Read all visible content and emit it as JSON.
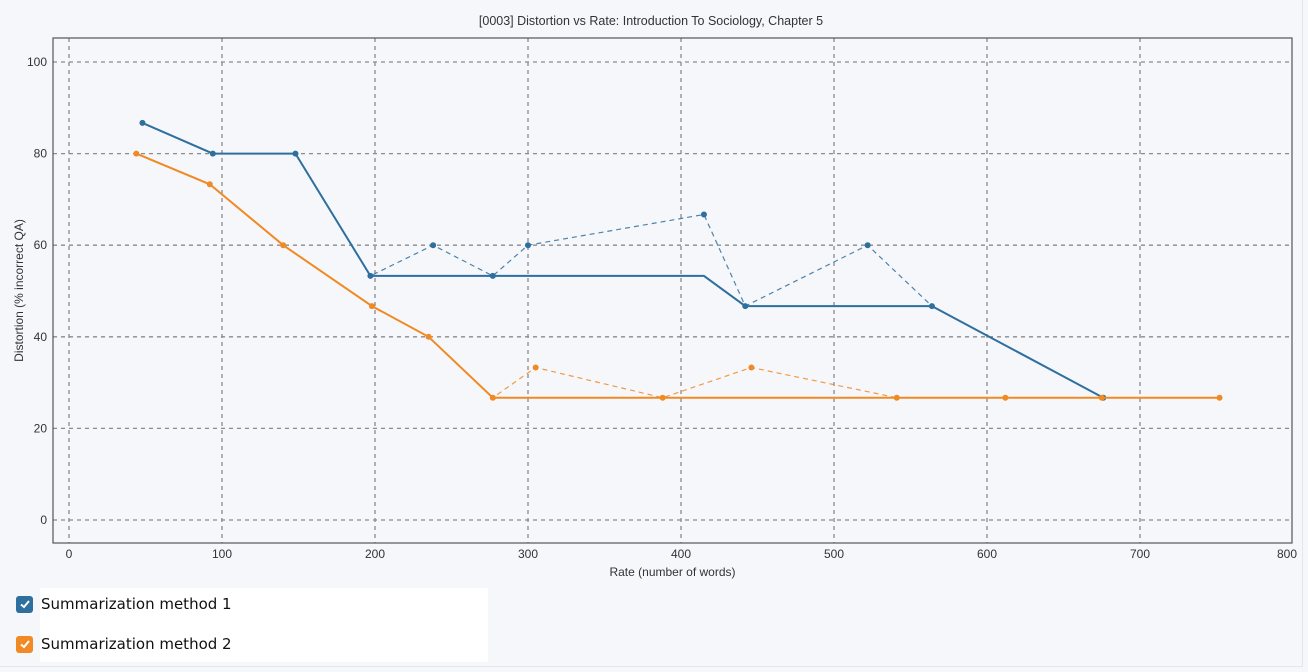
{
  "title": "[0003] Distortion vs Rate: Introduction To Sociology, Chapter 5",
  "legend": {
    "items": [
      {
        "label": "Summarization method 1",
        "color": "#2e6f9e",
        "checked": true
      },
      {
        "label": "Summarization method 2",
        "color": "#f08a24",
        "checked": true
      }
    ]
  },
  "chart_data": {
    "type": "line",
    "title": "[0003] Distortion vs Rate: Introduction To Sociology, Chapter 5",
    "xlabel": "Rate (number of words)",
    "ylabel": "Distortion (% incorrect QA)",
    "xlim": [
      -10,
      800
    ],
    "ylim": [
      -5,
      105
    ],
    "xticks": [
      0,
      100,
      200,
      300,
      400,
      500,
      600,
      700,
      800
    ],
    "yticks": [
      0,
      20,
      40,
      60,
      80,
      100
    ],
    "grid": true,
    "legend_position": "bottom-left",
    "series": [
      {
        "name": "Summarization method 1",
        "color": "#2e6f9e",
        "points": [
          [
            48,
            86.7
          ],
          [
            94,
            80
          ],
          [
            148,
            80
          ],
          [
            197,
            53.3
          ],
          [
            238,
            60
          ],
          [
            277,
            53.3
          ],
          [
            300,
            60
          ],
          [
            415,
            66.7
          ],
          [
            442,
            46.7
          ],
          [
            522,
            60
          ],
          [
            564,
            46.7
          ],
          [
            676,
            26.7
          ]
        ],
        "frontier": [
          [
            48,
            86.7
          ],
          [
            94,
            80
          ],
          [
            148,
            80
          ],
          [
            197,
            53.3
          ],
          [
            415,
            53.3
          ],
          [
            442,
            46.7
          ],
          [
            564,
            46.7
          ],
          [
            676,
            26.7
          ]
        ]
      },
      {
        "name": "Summarization method 2",
        "color": "#f08a24",
        "points": [
          [
            44,
            80
          ],
          [
            92,
            73.3
          ],
          [
            140,
            60
          ],
          [
            198,
            46.7
          ],
          [
            235,
            40
          ],
          [
            277,
            26.7
          ],
          [
            305,
            33.3
          ],
          [
            388,
            26.7
          ],
          [
            446,
            33.3
          ],
          [
            541,
            26.7
          ],
          [
            612,
            26.7
          ],
          [
            675,
            26.7
          ],
          [
            752,
            26.7
          ]
        ],
        "frontier": [
          [
            44,
            80
          ],
          [
            92,
            73.3
          ],
          [
            140,
            60
          ],
          [
            198,
            46.7
          ],
          [
            235,
            40
          ],
          [
            277,
            26.7
          ],
          [
            752,
            26.7
          ]
        ]
      }
    ]
  }
}
